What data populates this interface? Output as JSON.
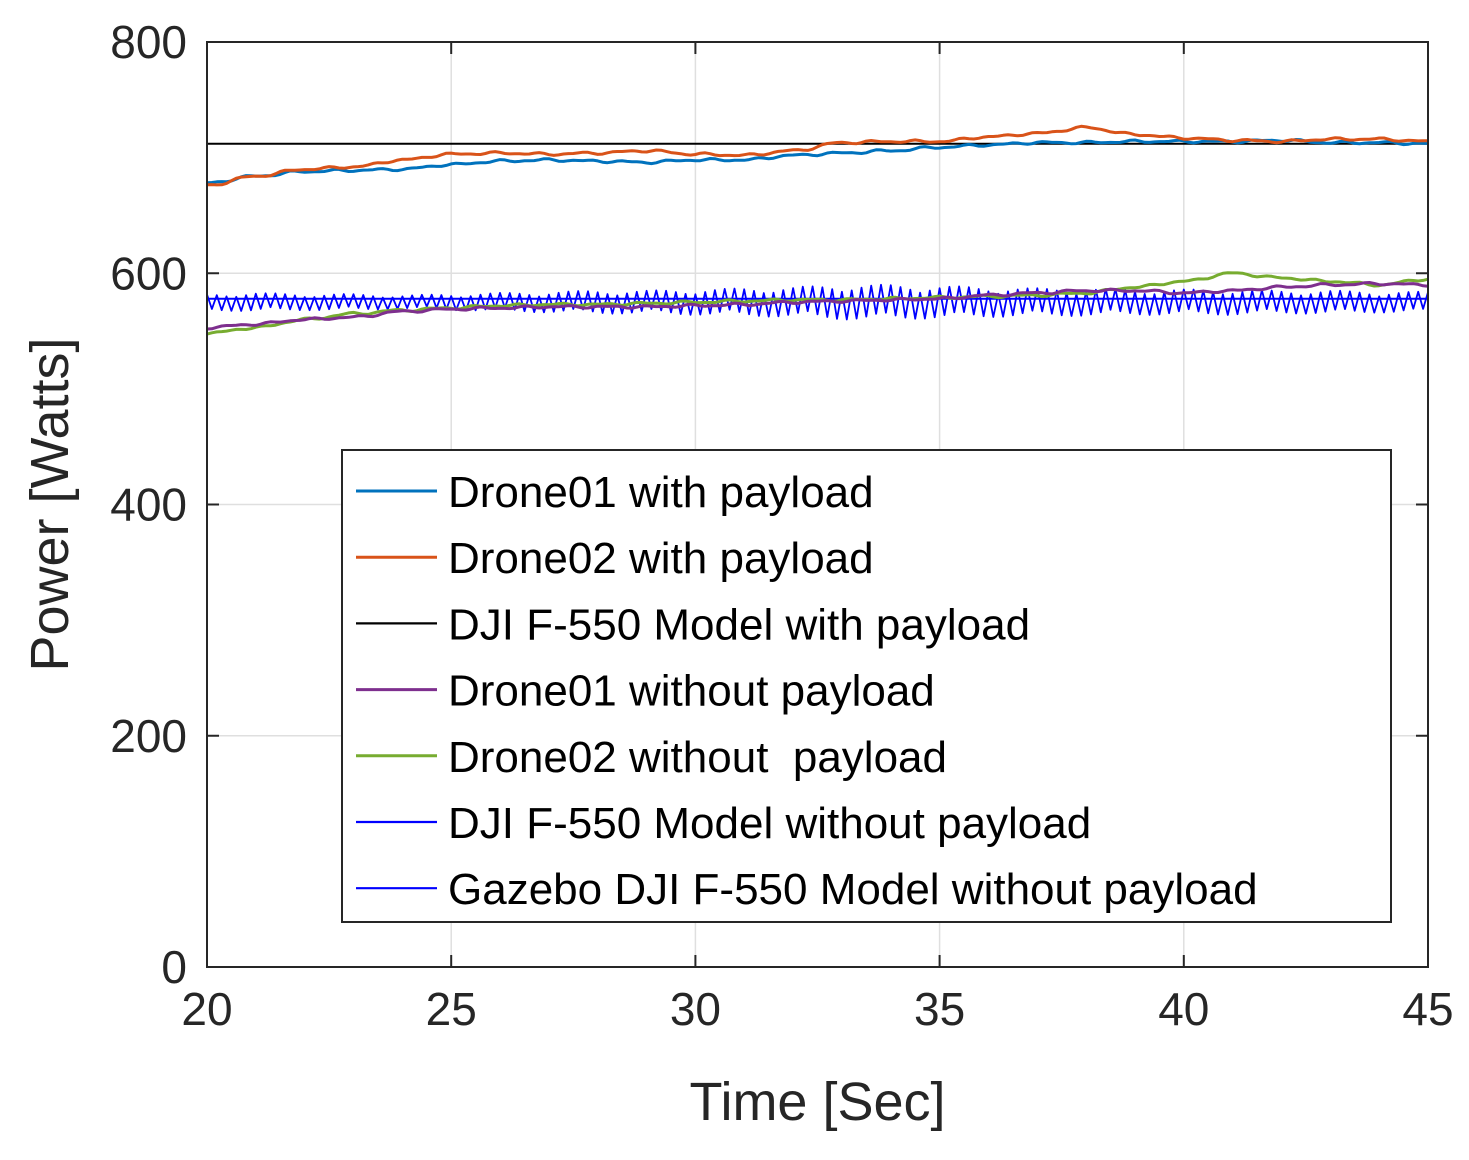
{
  "chart_data": {
    "type": "line",
    "title": "",
    "xlabel": "Time [Sec]",
    "ylabel": "Power [Watts]",
    "xlim": [
      20,
      45
    ],
    "ylim": [
      0,
      800
    ],
    "xticks": [
      "20",
      "25",
      "30",
      "35",
      "40",
      "45"
    ],
    "yticks": [
      "0",
      "200",
      "400",
      "600",
      "800"
    ],
    "grid": true,
    "legend_position": "bottom-right",
    "series": [
      {
        "name": "Drone01 with payload",
        "color": "#0072BD",
        "x": [
          20,
          21,
          22,
          23,
          24,
          25,
          26,
          27,
          28,
          29,
          30,
          31,
          32,
          33,
          34,
          35,
          36,
          37,
          38,
          39,
          40,
          41,
          42,
          43,
          44,
          45
        ],
        "y": [
          678,
          684,
          688,
          689,
          690,
          694,
          697,
          698,
          697,
          696,
          698,
          698,
          702,
          704,
          706,
          709,
          711,
          713,
          713,
          714,
          714,
          714,
          715,
          713,
          713,
          712
        ]
      },
      {
        "name": "Drone02 with payload",
        "color": "#D95319",
        "x": [
          20,
          21,
          22,
          23,
          24,
          25,
          26,
          27,
          28,
          29,
          30,
          31,
          32,
          33,
          34,
          35,
          36,
          37,
          38,
          39,
          40,
          41,
          42,
          43,
          44,
          45
        ],
        "y": [
          676,
          684,
          690,
          692,
          698,
          703,
          704,
          703,
          704,
          706,
          703,
          702,
          706,
          713,
          714,
          714,
          718,
          721,
          726,
          720,
          717,
          715,
          714,
          716,
          716,
          714
        ]
      },
      {
        "name": "DJI F-550 Model with payload",
        "color": "#000000",
        "x": [
          20,
          45
        ],
        "y": [
          712,
          712
        ]
      },
      {
        "name": "Drone01 without payload",
        "color": "#7E2F8E",
        "x": [
          20,
          21,
          22,
          23,
          24,
          25,
          26,
          27,
          28,
          29,
          30,
          31,
          32,
          33,
          34,
          35,
          36,
          37,
          38,
          39,
          40,
          41,
          42,
          43,
          44,
          45
        ],
        "y": [
          553,
          556,
          560,
          562,
          567,
          569,
          570,
          571,
          571,
          571,
          572,
          573,
          575,
          576,
          577,
          578,
          581,
          583,
          585,
          585,
          583,
          585,
          588,
          590,
          591,
          590
        ]
      },
      {
        "name": "Drone02 without  payload",
        "color": "#77AC30",
        "x": [
          20,
          21,
          22,
          23,
          24,
          25,
          26,
          27,
          28,
          29,
          30,
          31,
          32,
          33,
          34,
          35,
          36,
          37,
          38,
          39,
          40,
          41,
          42,
          43,
          44,
          45
        ],
        "y": [
          548,
          553,
          560,
          565,
          568,
          570,
          572,
          573,
          573,
          574,
          575,
          576,
          577,
          577,
          578,
          579,
          580,
          581,
          583,
          588,
          593,
          600,
          596,
          593,
          590,
          595
        ]
      },
      {
        "name": "DJI F-550 Model without payload",
        "color": "#0000FF",
        "x": [
          20,
          45
        ],
        "y": [
          578,
          578
        ]
      },
      {
        "name": "Gazebo DJI F-550 Model without payload",
        "color": "#0000FF",
        "x": [
          20,
          21,
          22,
          23,
          24,
          25,
          26,
          27,
          28,
          29,
          30,
          31,
          32,
          33,
          34,
          35,
          36,
          37,
          38,
          39,
          40,
          41,
          42,
          43,
          44,
          45
        ],
        "y": [
          575,
          575,
          575,
          575,
          575,
          575,
          575,
          575,
          575,
          575,
          575,
          575,
          575,
          575,
          575,
          575,
          575,
          575,
          575,
          575,
          575,
          575,
          575,
          575,
          575,
          575
        ],
        "noise_amplitude": [
          7,
          8,
          7,
          7,
          6,
          7,
          8,
          9,
          10,
          10,
          11,
          12,
          13,
          15,
          15,
          14,
          13,
          12,
          12,
          11,
          11,
          11,
          10,
          10,
          9,
          9
        ],
        "noisy": true
      }
    ]
  }
}
